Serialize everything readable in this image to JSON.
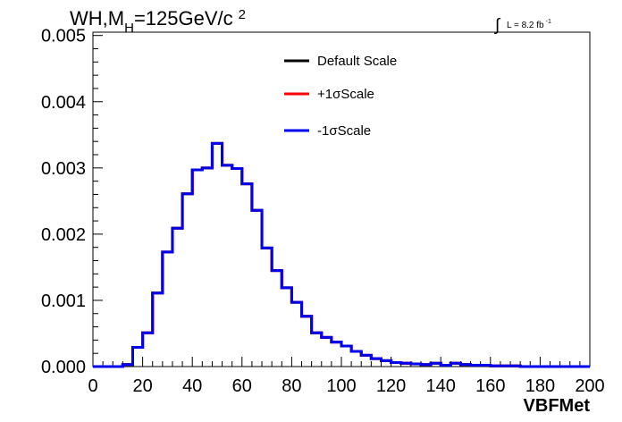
{
  "title": {
    "process": "WH,M",
    "subscript": "H",
    "mass": "=125GeV/c",
    "superscript": "2"
  },
  "lumi": {
    "integral": "∫",
    "text": "L = 8.2 fb",
    "superscript": "-1"
  },
  "colors": {
    "default": "#000000",
    "plus": "#ff0000",
    "minus": "#0000ee"
  },
  "chart_data": {
    "type": "line",
    "style": "step-histogram",
    "title": "WH,M_H=125GeV/c^2",
    "xlabel": "VBFMet",
    "ylabel": "",
    "xlim": [
      0,
      200
    ],
    "ylim": [
      0,
      0.00505
    ],
    "bin_width": 4,
    "x_ticks": [
      "0",
      "20",
      "40",
      "60",
      "80",
      "100",
      "120",
      "140",
      "160",
      "180",
      "200"
    ],
    "y_ticks": [
      "0.000",
      "0.001",
      "0.002",
      "0.003",
      "0.004",
      "0.005"
    ],
    "legend_position": "top-center",
    "grid": false,
    "bin_edges": [
      0,
      4,
      8,
      12,
      16,
      20,
      24,
      28,
      32,
      36,
      40,
      44,
      48,
      52,
      56,
      60,
      64,
      68,
      72,
      76,
      80,
      84,
      88,
      92,
      96,
      100,
      104,
      108,
      112,
      116,
      120,
      124,
      128,
      132,
      136,
      140,
      144,
      148,
      152,
      156,
      160,
      164,
      168,
      172,
      176,
      180,
      184,
      188,
      192,
      196,
      200
    ],
    "series": [
      {
        "name": "Default Scale",
        "color": "#000000",
        "values": [
          0,
          0,
          0,
          3e-05,
          0.00029,
          0.00051,
          0.00111,
          0.00173,
          0.00209,
          0.00261,
          0.00297,
          0.003,
          0.00337,
          0.00304,
          0.00299,
          0.00276,
          0.00236,
          0.00179,
          0.00145,
          0.00119,
          0.00097,
          0.00076,
          0.00051,
          0.00044,
          0.00037,
          0.00031,
          0.00023,
          0.00017,
          0.00012,
          9e-05,
          6e-05,
          5e-05,
          4e-05,
          3e-05,
          5e-05,
          2e-05,
          5e-05,
          3e-05,
          2e-05,
          2e-05,
          1e-05,
          1e-05,
          1e-05,
          0,
          0,
          0,
          0,
          0,
          0,
          0
        ]
      },
      {
        "name": "+1σScale",
        "color": "#ff0000",
        "values": [
          0,
          0,
          0,
          3e-05,
          0.00029,
          0.00051,
          0.00111,
          0.00173,
          0.00209,
          0.00261,
          0.00297,
          0.003,
          0.00337,
          0.00304,
          0.00299,
          0.00276,
          0.00236,
          0.00179,
          0.00145,
          0.00119,
          0.00097,
          0.00076,
          0.00051,
          0.00044,
          0.00037,
          0.00031,
          0.00023,
          0.00017,
          0.00012,
          9e-05,
          6e-05,
          5e-05,
          4e-05,
          3e-05,
          5e-05,
          2e-05,
          5e-05,
          3e-05,
          2e-05,
          2e-05,
          1e-05,
          1e-05,
          1e-05,
          0,
          0,
          0,
          0,
          0,
          0,
          0
        ]
      },
      {
        "name": "-1σScale",
        "color": "#0000ee",
        "values": [
          0,
          0,
          0,
          3e-05,
          0.00029,
          0.00051,
          0.00111,
          0.00173,
          0.00209,
          0.00261,
          0.00297,
          0.003,
          0.00337,
          0.00304,
          0.00299,
          0.00276,
          0.00236,
          0.00179,
          0.00145,
          0.00119,
          0.00097,
          0.00076,
          0.00051,
          0.00044,
          0.00037,
          0.00031,
          0.00023,
          0.00017,
          0.00012,
          9e-05,
          6e-05,
          5e-05,
          4e-05,
          3e-05,
          5e-05,
          2e-05,
          5e-05,
          3e-05,
          2e-05,
          2e-05,
          1e-05,
          1e-05,
          1e-05,
          0,
          0,
          0,
          0,
          0,
          0,
          0
        ]
      }
    ]
  }
}
